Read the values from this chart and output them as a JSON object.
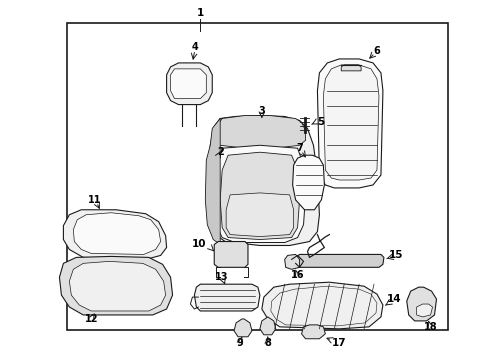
{
  "background_color": "#ffffff",
  "line_color": "#1a1a1a",
  "text_color": "#000000",
  "fig_width": 4.89,
  "fig_height": 3.6,
  "dpi": 100,
  "border": [
    0.135,
    0.06,
    0.92,
    0.92
  ]
}
